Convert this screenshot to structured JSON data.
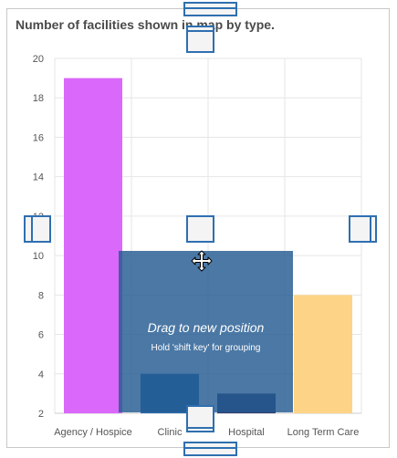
{
  "panel": {
    "title": "Number of facilities shown in map by type."
  },
  "chart_data": {
    "type": "bar",
    "title": "Number of facilities shown in map by type.",
    "categories": [
      "Agency / Hospice",
      "Clinic",
      "Hospital",
      "Long Term Care"
    ],
    "values": [
      19,
      4,
      3,
      8
    ],
    "colors": [
      "#da68fa",
      "#2b6eb0",
      "#333f75",
      "#fdd487"
    ],
    "ylim": [
      2,
      20
    ],
    "yticks": [
      2,
      4,
      6,
      8,
      10,
      12,
      14,
      16,
      18,
      20
    ],
    "xlabel": "",
    "ylabel": "",
    "grid": true
  },
  "drag_overlay": {
    "title": "Drag to new position",
    "hint": "Hold 'shift key' for grouping"
  },
  "icons": {
    "move_cursor": "move-cursor-icon",
    "resize_handles": [
      "resize-handle-top",
      "resize-handle-bottom",
      "resize-handle-left",
      "resize-handle-right",
      "resize-handle-center"
    ]
  }
}
